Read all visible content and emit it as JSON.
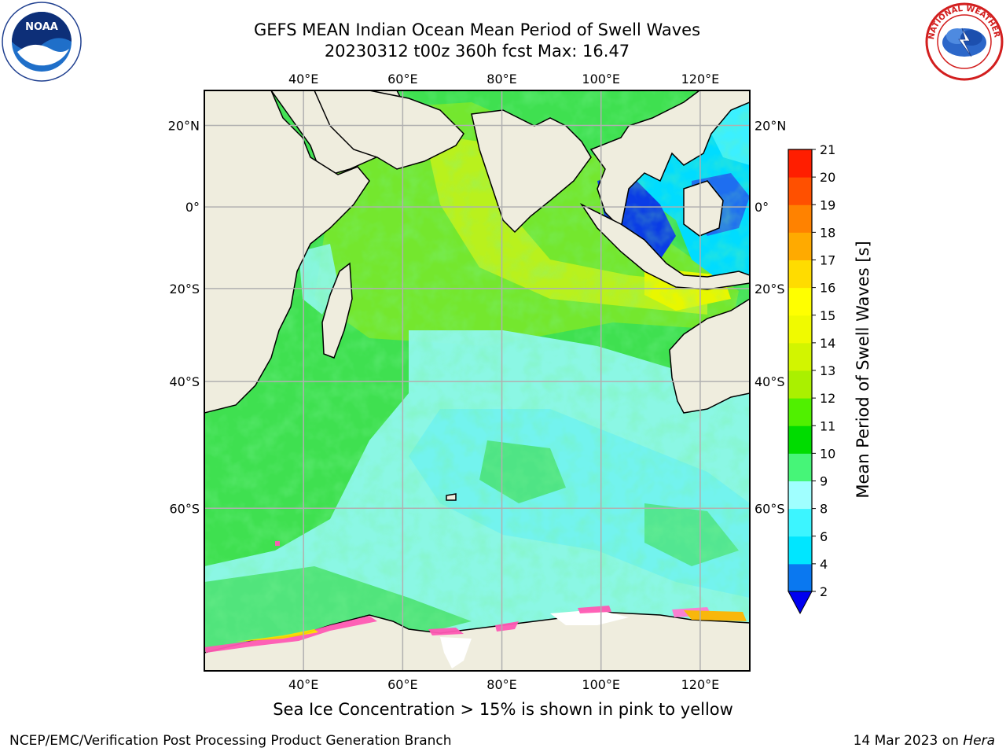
{
  "title": {
    "line1": "GEFS MEAN Indian Ocean Mean Period of Swell Waves",
    "line2": "20230312 t00z 360h fcst   Max: 16.47"
  },
  "map": {
    "lon_labels": [
      "40°E",
      "60°E",
      "80°E",
      "100°E",
      "120°E"
    ],
    "lon_values": [
      40,
      60,
      80,
      100,
      120
    ],
    "lat_labels": [
      "20°N",
      "0°",
      "20°S",
      "40°S",
      "60°S"
    ],
    "lat_values": [
      20,
      0,
      -20,
      -40,
      -60
    ],
    "lon_range": [
      20,
      130
    ],
    "lat_range": [
      -75,
      28
    ],
    "land_color": "#efedde",
    "grid_color": "#b0b0b0"
  },
  "colorbar": {
    "label": "Mean Period of Swell Waves [s]",
    "ticks": [
      "2",
      "4",
      "6",
      "8",
      "9",
      "10",
      "11",
      "12",
      "13",
      "14",
      "15",
      "16",
      "17",
      "18",
      "19",
      "20",
      "21"
    ],
    "colors": [
      "#0a78f0",
      "#00e6ff",
      "#3cf5ff",
      "#a0ffff",
      "#46f578",
      "#00dc00",
      "#50f000",
      "#aaf000",
      "#d2f500",
      "#f0fa00",
      "#ffff00",
      "#ffdc00",
      "#ffaa00",
      "#ff8200",
      "#ff5000",
      "#ff1e00"
    ],
    "extend_color": "#0000f0"
  },
  "caption": "Sea Ice Concentration > 15% is shown in pink to yellow",
  "footer": {
    "left": "NCEP/EMC/Verification Post Processing Product Generation Branch",
    "date": "14 Mar 2023 on ",
    "host": "Hera"
  },
  "logos": {
    "noaa_text": "NOAA",
    "nws_text": "NATIONAL WEATHER SERVICE"
  }
}
